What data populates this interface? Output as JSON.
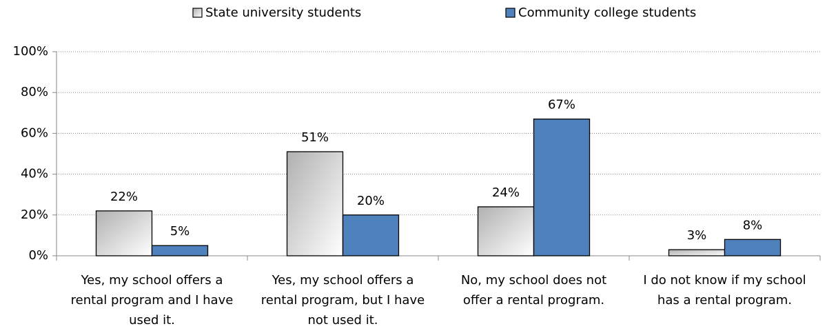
{
  "chart_data": {
    "type": "bar",
    "categories": [
      "Yes, my school offers a rental program and I have used it.",
      "Yes, my school offers a rental program, but I have not used it.",
      "No, my school does not offer a rental program.",
      "I do not know if my school has a rental program."
    ],
    "series": [
      {
        "name": "State university students",
        "color": "#b0b0b0",
        "values": [
          22,
          51,
          24,
          3
        ],
        "value_labels": [
          "22%",
          "51%",
          "24%",
          "3%"
        ]
      },
      {
        "name": "Community college students",
        "color": "#4f81bd",
        "values": [
          5,
          20,
          67,
          8
        ],
        "value_labels": [
          "5%",
          "20%",
          "67%",
          "8%"
        ]
      }
    ],
    "ylim": [
      0,
      100
    ],
    "yticks": [
      {
        "value": 0,
        "label": "0%"
      },
      {
        "value": 20,
        "label": "20%"
      },
      {
        "value": 40,
        "label": "40%"
      },
      {
        "value": 60,
        "label": "60%"
      },
      {
        "value": 80,
        "label": "80%"
      },
      {
        "value": 100,
        "label": "100%"
      }
    ],
    "grid": true,
    "legend": "top"
  }
}
